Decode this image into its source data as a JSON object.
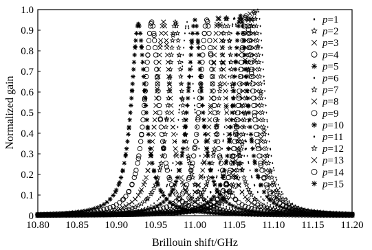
{
  "chart_data": {
    "type": "scatter",
    "xlabel": "Brillouin shift/GHz",
    "ylabel": "Normalized gain",
    "xlim": [
      10.8,
      11.2
    ],
    "ylim": [
      0,
      1.0
    ],
    "x_ticks": [
      "10.80",
      "10.85",
      "10.90",
      "10.95",
      "11.00",
      "11.05",
      "11.10",
      "11.15",
      "11.20"
    ],
    "y_ticks": [
      "0",
      "0.1",
      "0.2",
      "0.3",
      "0.4",
      "0.5",
      "0.6",
      "0.7",
      "0.8",
      "0.9",
      "1.0"
    ],
    "legend_position": "right",
    "grid": false,
    "x_sample_range": [
      10.8,
      11.2
    ],
    "series": [
      {
        "name": "p=1",
        "marker": "dot",
        "peak_center": 11.08,
        "peak_gain": 1.0,
        "half_width": 0.011
      },
      {
        "name": "p=2",
        "marker": "star",
        "peak_center": 11.075,
        "peak_gain": 0.99,
        "half_width": 0.011
      },
      {
        "name": "p=3",
        "marker": "cross",
        "peak_center": 11.07,
        "peak_gain": 0.98,
        "half_width": 0.011
      },
      {
        "name": "p=4",
        "marker": "circle",
        "peak_center": 11.065,
        "peak_gain": 0.97,
        "half_width": 0.011
      },
      {
        "name": "p=5",
        "marker": "asterisk",
        "peak_center": 11.058,
        "peak_gain": 0.97,
        "half_width": 0.011
      },
      {
        "name": "p=6",
        "marker": "dot",
        "peak_center": 11.05,
        "peak_gain": 0.96,
        "half_width": 0.011
      },
      {
        "name": "p=7",
        "marker": "star",
        "peak_center": 11.04,
        "peak_gain": 0.96,
        "half_width": 0.011
      },
      {
        "name": "p=8",
        "marker": "cross",
        "peak_center": 11.03,
        "peak_gain": 0.96,
        "half_width": 0.011
      },
      {
        "name": "p=9",
        "marker": "circle",
        "peak_center": 11.015,
        "peak_gain": 0.95,
        "half_width": 0.011
      },
      {
        "name": "p=10",
        "marker": "asterisk",
        "peak_center": 11.0,
        "peak_gain": 0.95,
        "half_width": 0.011
      },
      {
        "name": "p=11",
        "marker": "dot",
        "peak_center": 10.99,
        "peak_gain": 0.94,
        "half_width": 0.011
      },
      {
        "name": "p=12",
        "marker": "star",
        "peak_center": 10.975,
        "peak_gain": 0.94,
        "half_width": 0.011
      },
      {
        "name": "p=13",
        "marker": "cross",
        "peak_center": 10.96,
        "peak_gain": 0.94,
        "half_width": 0.011
      },
      {
        "name": "p=14",
        "marker": "circle",
        "peak_center": 10.945,
        "peak_gain": 0.94,
        "half_width": 0.011
      },
      {
        "name": "p=15",
        "marker": "asterisk",
        "peak_center": 10.928,
        "peak_gain": 0.93,
        "half_width": 0.011
      }
    ]
  }
}
